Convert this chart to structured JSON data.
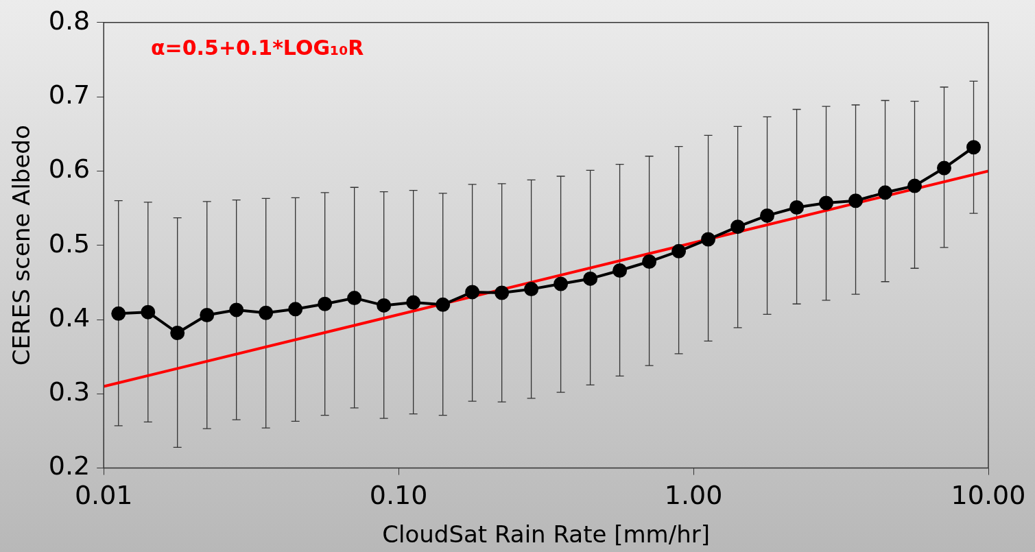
{
  "chart_data": {
    "type": "line",
    "xlabel": "CloudSat Rain Rate [mm/hr]",
    "ylabel": "CERES scene Albedo",
    "log": "x",
    "xlim": [
      0.01,
      10
    ],
    "ylim": [
      0.2,
      0.8
    ],
    "xticks": [
      {
        "value": 0.01,
        "label": "0.01"
      },
      {
        "value": 0.1,
        "label": "0.10"
      },
      {
        "value": 1,
        "label": "1.00"
      },
      {
        "value": 10,
        "label": "10.00"
      }
    ],
    "yticks": [
      0.2,
      0.3,
      0.4,
      0.5,
      0.6,
      0.7,
      0.8
    ],
    "grid": false,
    "legend": false,
    "marker": "circle",
    "line_style": "solid",
    "annotations": [
      "α=0.5+0.1*LOG₁₀R"
    ],
    "series": [
      {
        "color": "#000000",
        "x": [
          0.01122,
          0.01413,
          0.01778,
          0.02239,
          0.02818,
          0.03548,
          0.04467,
          0.05623,
          0.07079,
          0.08913,
          0.1122,
          0.1413,
          0.1778,
          0.2239,
          0.2818,
          0.3548,
          0.4467,
          0.5623,
          0.7079,
          0.8913,
          1.122,
          1.413,
          1.778,
          2.239,
          2.818,
          3.548,
          4.467,
          5.623,
          7.079,
          8.913
        ],
        "values": [
          0.408,
          0.41,
          0.382,
          0.406,
          0.413,
          0.409,
          0.414,
          0.421,
          0.429,
          0.419,
          0.423,
          0.42,
          0.437,
          0.436,
          0.441,
          0.448,
          0.455,
          0.466,
          0.478,
          0.492,
          0.508,
          0.525,
          0.54,
          0.551,
          0.557,
          0.56,
          0.571,
          0.58,
          0.604,
          0.632
        ],
        "errors": [
          [
            0.257,
            0.56
          ],
          [
            0.262,
            0.558
          ],
          [
            0.228,
            0.537
          ],
          [
            0.253,
            0.559
          ],
          [
            0.265,
            0.561
          ],
          [
            0.254,
            0.563
          ],
          [
            0.263,
            0.564
          ],
          [
            0.271,
            0.571
          ],
          [
            0.281,
            0.578
          ],
          [
            0.267,
            0.572
          ],
          [
            0.273,
            0.574
          ],
          [
            0.271,
            0.57
          ],
          [
            0.29,
            0.582
          ],
          [
            0.289,
            0.583
          ],
          [
            0.294,
            0.588
          ],
          [
            0.302,
            0.593
          ],
          [
            0.312,
            0.601
          ],
          [
            0.324,
            0.609
          ],
          [
            0.338,
            0.62
          ],
          [
            0.354,
            0.633
          ],
          [
            0.371,
            0.648
          ],
          [
            0.389,
            0.66
          ],
          [
            0.407,
            0.673
          ],
          [
            0.421,
            0.683
          ],
          [
            0.426,
            0.687
          ],
          [
            0.434,
            0.689
          ],
          [
            0.451,
            0.695
          ],
          [
            0.469,
            0.694
          ],
          [
            0.497,
            0.713
          ],
          [
            0.543,
            0.721
          ]
        ]
      },
      {
        "type": "line",
        "color": "#ff0000",
        "marker": "none",
        "x": [
          0.01,
          10
        ],
        "values": [
          0.31,
          0.6
        ]
      }
    ]
  }
}
